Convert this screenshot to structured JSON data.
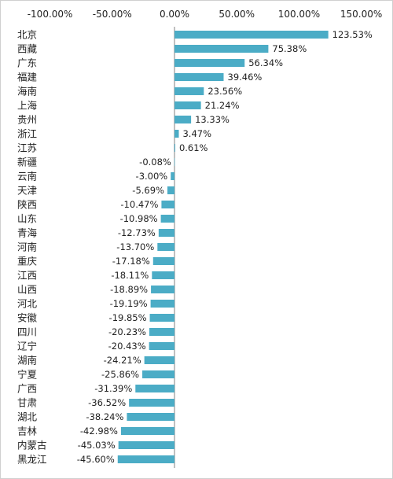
{
  "chart_data": {
    "type": "bar",
    "orientation": "horizontal",
    "xlim": [
      -100,
      150
    ],
    "x_ticks": [
      "-100.00%",
      "-50.00%",
      "0.00%",
      "50.00%",
      "100.00%",
      "150.00%"
    ],
    "x_tick_values": [
      -100,
      -50,
      0,
      50,
      100,
      150
    ],
    "x_axis_position": "top",
    "grid": false,
    "bar_color": "#4bacc6",
    "categories": [
      "北京",
      "西藏",
      "广东",
      "福建",
      "海南",
      "上海",
      "贵州",
      "浙江",
      "江苏",
      "新疆",
      "云南",
      "天津",
      "陕西",
      "山东",
      "青海",
      "河南",
      "重庆",
      "江西",
      "山西",
      "河北",
      "安徽",
      "四川",
      "辽宁",
      "湖南",
      "宁夏",
      "广西",
      "甘肃",
      "湖北",
      "吉林",
      "内蒙古",
      "黑龙江"
    ],
    "values": [
      123.53,
      75.38,
      56.34,
      39.46,
      23.56,
      21.24,
      13.33,
      3.47,
      0.61,
      -0.08,
      -3.0,
      -5.69,
      -10.47,
      -10.98,
      -12.73,
      -13.7,
      -17.18,
      -18.11,
      -18.89,
      -19.19,
      -19.85,
      -20.23,
      -20.43,
      -24.21,
      -25.86,
      -31.39,
      -36.52,
      -38.24,
      -42.98,
      -45.03,
      -45.6
    ],
    "labels": [
      "123.53%",
      "75.38%",
      "56.34%",
      "39.46%",
      "23.56%",
      "21.24%",
      "13.33%",
      "3.47%",
      "0.61%",
      "-0.08%",
      "-3.00%",
      "-5.69%",
      "-10.47%",
      "-10.98%",
      "-12.73%",
      "-13.70%",
      "-17.18%",
      "-18.11%",
      "-18.89%",
      "-19.19%",
      "-19.85%",
      "-20.23%",
      "-20.43%",
      "-24.21%",
      "-25.86%",
      "-31.39%",
      "-36.52%",
      "-38.24%",
      "-42.98%",
      "-45.03%",
      "-45.60%"
    ]
  }
}
